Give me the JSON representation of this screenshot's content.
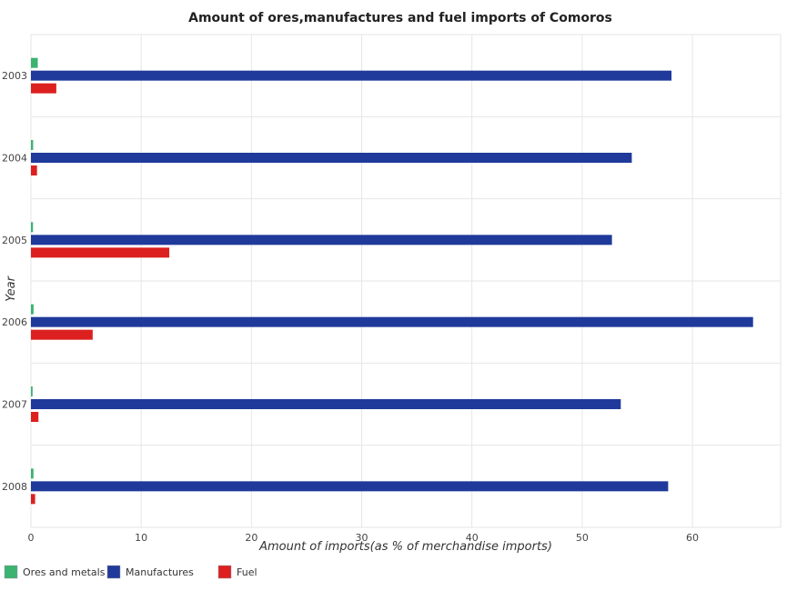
{
  "chart_data": {
    "type": "bar",
    "orientation": "horizontal",
    "title": "Amount of ores,manufactures and fuel imports of Comoros",
    "xlabel": "Amount of imports(as % of merchandise imports)",
    "ylabel": "Year",
    "categories": [
      "2003",
      "2004",
      "2005",
      "2006",
      "2007",
      "2008"
    ],
    "xlim": [
      0,
      68
    ],
    "xticks": [
      0,
      10,
      20,
      30,
      40,
      50,
      60
    ],
    "grid": true,
    "legend_position": "bottom-left",
    "series": [
      {
        "name": "Ores and metals",
        "color": "#3cb371",
        "values": [
          0.62,
          0.2,
          0.19,
          0.24,
          0.15,
          0.23
        ]
      },
      {
        "name": "Manufactures",
        "color": "#1f3a9a",
        "values": [
          58.1,
          54.5,
          52.7,
          65.5,
          53.5,
          57.8
        ]
      },
      {
        "name": "Fuel",
        "color": "#dc2020",
        "values": [
          2.3,
          0.55,
          12.55,
          5.6,
          0.68,
          0.38
        ]
      }
    ]
  }
}
